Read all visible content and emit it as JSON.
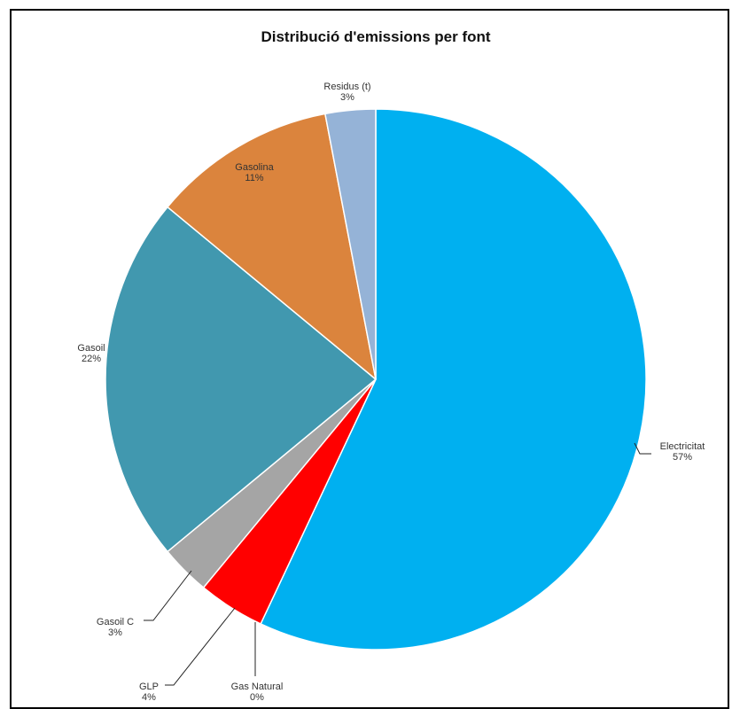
{
  "chart_data": {
    "type": "pie",
    "title": "Distribució d'emissions  per font",
    "start_angle_deg": 0,
    "direction": "clockwise",
    "slices": [
      {
        "label": "Electricitat",
        "value": 57,
        "value_label": "57%",
        "color": "#00b0f0"
      },
      {
        "label": "Gas Natural",
        "value": 0,
        "value_label": "0%",
        "color": "#00b050"
      },
      {
        "label": "GLP",
        "value": 4,
        "value_label": "4%",
        "color": "#ff0000"
      },
      {
        "label": "Gasoil C",
        "value": 3,
        "value_label": "3%",
        "color": "#a5a5a5"
      },
      {
        "label": "Gasoil",
        "value": 22,
        "value_label": "22%",
        "color": "#4198af"
      },
      {
        "label": "Gasolina",
        "value": 11,
        "value_label": "11%",
        "color": "#db843d"
      },
      {
        "label": "Residus (t)",
        "value": 3,
        "value_label": "3%",
        "color": "#95b3d7"
      }
    ]
  }
}
